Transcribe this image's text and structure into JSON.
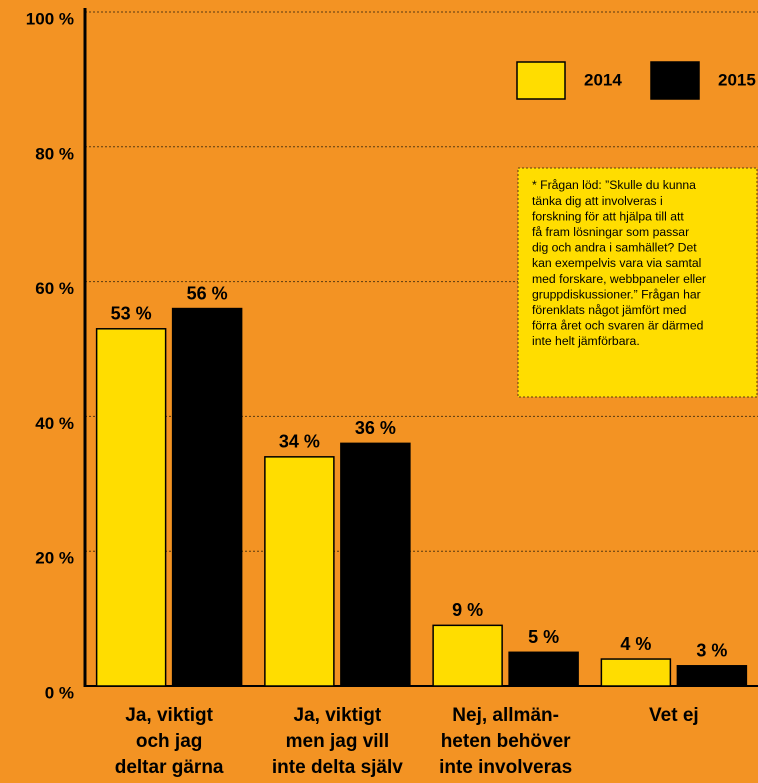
{
  "chart_data": {
    "type": "bar",
    "categories": [
      [
        "Ja, viktigt",
        "och jag",
        "deltar gärna"
      ],
      [
        "Ja, viktigt",
        "men jag vill",
        "inte delta själv"
      ],
      [
        "Nej, allmän-",
        "heten behöver",
        "inte involveras"
      ],
      [
        "Vet ej"
      ]
    ],
    "series": [
      {
        "name": "2014",
        "color": "#ffdd00",
        "values": [
          53,
          34,
          9,
          4
        ],
        "value_labels": [
          "53 %",
          "34 %",
          "9 %",
          "4 %"
        ]
      },
      {
        "name": "2015",
        "color": "#000000",
        "values": [
          56,
          36,
          5,
          3
        ],
        "value_labels": [
          "56 %",
          "36 %",
          "5 %",
          "3 %"
        ]
      }
    ],
    "ylim": [
      0,
      100
    ],
    "yticks": [
      {
        "value": 0,
        "label": "0 %"
      },
      {
        "value": 20,
        "label": "20 %"
      },
      {
        "value": 40,
        "label": "40 %"
      },
      {
        "value": 60,
        "label": "60 %"
      },
      {
        "value": 80,
        "label": "80 %"
      },
      {
        "value": 100,
        "label": "100 %"
      }
    ],
    "grid": true,
    "legend": "top-right",
    "annotation": [
      "* Frågan löd: ”Skulle du kunna",
      "tänka dig att involveras i",
      "forskning för att hjälpa till att",
      "få fram lösningar som passar",
      "dig och andra i samhället? Det",
      "kan exempelvis vara via samtal",
      "med forskare, webbpaneler eller",
      "gruppdiskussioner.” Frågan har",
      "förenklats något jämfört med",
      "förra året och svaren är därmed",
      "inte helt jämförbara."
    ]
  }
}
